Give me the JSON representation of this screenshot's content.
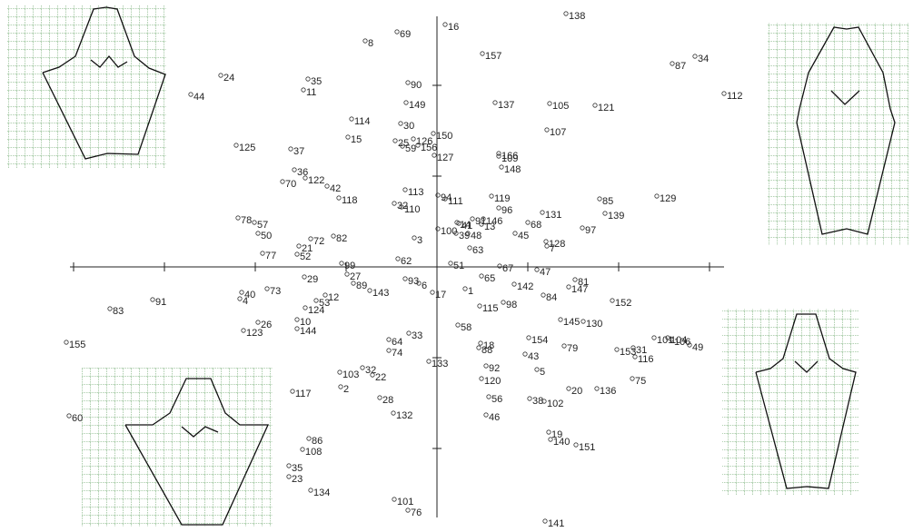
{
  "chart_data": {
    "type": "scatter",
    "labels": [
      "138",
      "16",
      "69",
      "8",
      "157",
      "87",
      "34",
      "112",
      "24",
      "44",
      "35",
      "11",
      "90",
      "149",
      "137",
      "105",
      "121",
      "114",
      "30",
      "150",
      "107",
      "15",
      "125",
      "37",
      "25",
      "126",
      "59",
      "156",
      "127",
      "166",
      "109",
      "148",
      "36",
      "122",
      "70",
      "42",
      "113",
      "94",
      "111",
      "119",
      "85",
      "129",
      "118",
      "32",
      "110",
      "96",
      "131",
      "139",
      "78",
      "57",
      "91",
      "146",
      "68",
      "14",
      "41",
      "13",
      "100",
      "39",
      "48",
      "45",
      "97",
      "50",
      "72",
      "82",
      "3",
      "128",
      "7",
      "21",
      "52",
      "77",
      "63",
      "62",
      "51",
      "99",
      "67",
      "47",
      "27",
      "29",
      "65",
      "81",
      "89",
      "93",
      "6",
      "142",
      "147",
      "73",
      "40",
      "143",
      "17",
      "1",
      "91",
      "4",
      "12",
      "53",
      "84",
      "152",
      "98",
      "115",
      "83",
      "124",
      "26",
      "10",
      "144",
      "123",
      "145",
      "130",
      "58",
      "33",
      "154",
      "64",
      "101",
      "104",
      "106",
      "49",
      "155",
      "18",
      "88",
      "79",
      "153",
      "31",
      "116",
      "74",
      "43",
      "133",
      "32",
      "103",
      "22",
      "92",
      "5",
      "120",
      "75",
      "117",
      "2",
      "20",
      "136",
      "28",
      "56",
      "38",
      "102",
      "132",
      "60",
      "46",
      "19",
      "140",
      "151",
      "86",
      "108",
      "35",
      "23",
      "134",
      "101",
      "76",
      "141"
    ],
    "x": [
      1.42,
      0.09,
      -0.44,
      -0.79,
      0.5,
      2.59,
      2.84,
      3.16,
      -2.38,
      -2.71,
      -1.42,
      -1.47,
      -0.32,
      -0.34,
      0.64,
      1.24,
      1.74,
      -0.94,
      -0.4,
      -0.04,
      1.21,
      -0.98,
      -2.21,
      -1.61,
      -0.46,
      -0.26,
      -0.38,
      -0.21,
      -0.03,
      0.68,
      0.68,
      0.71,
      -1.57,
      -1.45,
      -1.7,
      -1.21,
      -0.35,
      0.01,
      0.09,
      0.6,
      1.79,
      2.42,
      -1.08,
      -0.47,
      -0.39,
      0.68,
      1.16,
      1.85,
      -2.19,
      -2.01,
      0.39,
      0.51,
      1.0,
      0.22,
      0.24,
      0.49,
      0.01,
      0.21,
      0.34,
      0.86,
      1.6,
      -1.97,
      -1.39,
      -1.14,
      -0.25,
      1.2,
      1.21,
      -1.52,
      -1.54,
      -1.92,
      0.36,
      -0.43,
      0.15,
      -1.05,
      0.69,
      1.1,
      -0.99,
      -1.46,
      0.49,
      1.52,
      -0.92,
      -0.35,
      -0.2,
      0.85,
      1.45,
      -1.87,
      -2.15,
      -0.74,
      -0.05,
      0.31,
      -3.13,
      -2.17,
      -1.23,
      -1.33,
      1.17,
      1.93,
      0.73,
      0.47,
      -3.6,
      -1.45,
      -1.97,
      -1.54,
      -1.54,
      -2.13,
      1.36,
      1.61,
      0.23,
      -0.31,
      1.01,
      -0.53,
      2.39,
      2.54,
      2.58,
      2.78,
      -4.08,
      0.48,
      0.46,
      1.4,
      1.98,
      2.16,
      2.18,
      -0.53,
      0.97,
      -0.09,
      -0.82,
      -1.07,
      -0.71,
      0.54,
      1.1,
      0.49,
      2.15,
      -1.59,
      -1.06,
      1.45,
      1.76,
      -0.63,
      0.57,
      1.02,
      1.18,
      -0.48,
      -4.05,
      0.54,
      1.23,
      1.25,
      1.53,
      -1.41,
      -1.48,
      -1.63,
      -1.63,
      -1.39,
      -0.47,
      -0.32,
      1.19
    ],
    "y": [
      2.79,
      2.67,
      2.59,
      2.49,
      2.35,
      2.24,
      2.32,
      1.91,
      2.11,
      1.9,
      2.07,
      1.95,
      2.03,
      1.81,
      1.81,
      1.8,
      1.78,
      1.63,
      1.58,
      1.47,
      1.51,
      1.43,
      1.34,
      1.3,
      1.39,
      1.41,
      1.33,
      1.34,
      1.23,
      1.25,
      1.22,
      1.1,
      1.07,
      0.98,
      0.94,
      0.89,
      0.85,
      0.79,
      0.75,
      0.78,
      0.75,
      0.78,
      0.76,
      0.7,
      0.66,
      0.65,
      0.6,
      0.59,
      0.54,
      0.49,
      0.53,
      0.53,
      0.49,
      0.49,
      0.48,
      0.47,
      0.42,
      0.37,
      0.37,
      0.37,
      0.43,
      0.37,
      0.31,
      0.34,
      0.32,
      0.28,
      0.23,
      0.23,
      0.14,
      0.15,
      0.21,
      0.09,
      0.04,
      0.04,
      0.01,
      -0.03,
      -0.08,
      -0.11,
      -0.1,
      -0.14,
      -0.18,
      -0.13,
      -0.18,
      -0.19,
      -0.22,
      -0.24,
      -0.28,
      -0.26,
      -0.28,
      -0.24,
      -0.36,
      -0.35,
      -0.31,
      -0.37,
      -0.31,
      -0.37,
      -0.39,
      -0.43,
      -0.46,
      -0.45,
      -0.61,
      -0.58,
      -0.68,
      -0.7,
      -0.58,
      -0.6,
      -0.64,
      -0.73,
      -0.78,
      -0.8,
      -0.78,
      -0.78,
      -0.8,
      -0.86,
      -0.83,
      -0.84,
      -0.89,
      -0.87,
      -0.91,
      -0.89,
      -0.99,
      -0.92,
      -0.96,
      -1.04,
      -1.11,
      -1.16,
      -1.19,
      -1.09,
      -1.13,
      -1.23,
      -1.23,
      -1.37,
      -1.32,
      -1.34,
      -1.34,
      -1.44,
      -1.43,
      -1.45,
      -1.48,
      -1.61,
      -1.64,
      -1.63,
      -1.82,
      -1.9,
      -1.96,
      -1.89,
      -2.01,
      -2.19,
      -2.31,
      -2.46,
      -2.56,
      -2.68,
      -2.8
    ],
    "xlim": [
      -4.1,
      3.2
    ],
    "ylim": [
      -2.82,
      2.82
    ],
    "xticks": [
      -4,
      -3,
      -2,
      -1,
      0,
      1,
      2,
      3
    ],
    "yticks": [
      -2,
      -1,
      0,
      1,
      2
    ]
  }
}
